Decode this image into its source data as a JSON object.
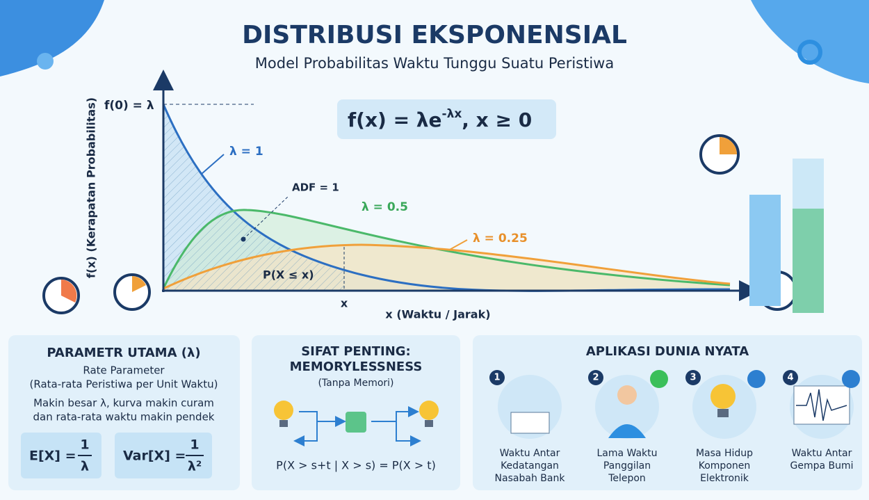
{
  "header": {
    "title": "DISTRIBUSI EKSPONENSIAL",
    "subtitle": "Model Probabilitas Waktu Tunggu Suatu Peristiwa"
  },
  "formula": {
    "base": "f(x) = λe",
    "exponent": "-λx",
    "condition": ", x ≥ 0"
  },
  "graph": {
    "y_axis_label": "f(x) (Kerapatan Probabilitas)",
    "x_axis_label": "x (Waktu / Jarak)",
    "intercept_label": "f(0) = λ",
    "curves": [
      "λ = 1",
      "λ = 0.5",
      "λ = 0.25"
    ],
    "area_note": "ADF = 1",
    "cdf_label": "P(X ≤ x)",
    "x_marker": "x"
  },
  "panels": [
    {
      "title": "PARAMETR UTAMA (λ)",
      "lines": [
        "Rate Parameter",
        "(Rata-rata Peristiwa per Unit Waktu)",
        "Makin besar λ, kurva makin curam",
        "dan rata-rata waktu makin pendek"
      ],
      "formulas": [
        {
          "left": "E[X] =",
          "numerator": "1",
          "denominator": "λ"
        },
        {
          "left": "Var[X] =",
          "numerator": "1",
          "denominator": "λ²"
        }
      ]
    },
    {
      "title": [
        "SIFAT PENTING:",
        "MEMORYLESSNESS"
      ],
      "lines": [
        "(Tanpa Memori)"
      ],
      "formula": "P(X > s+t | X > s) = P(X > t)"
    },
    {
      "title": "APLIKASI DUNIA NYATA",
      "items": [
        {
          "number": "1",
          "label": [
            "Waktu Antar",
            "Kedatangan",
            "Nasabah Bank"
          ]
        },
        {
          "number": "2",
          "label": [
            "Lama Waktu",
            "Panggilan",
            "Telepon"
          ]
        },
        {
          "number": "3",
          "label": [
            "Masa Hidup",
            "Komponen",
            "Elektronik"
          ]
        },
        {
          "number": "4",
          "label": [
            "Waktu Antar",
            "Gempa Bumi"
          ]
        }
      ]
    }
  ]
}
